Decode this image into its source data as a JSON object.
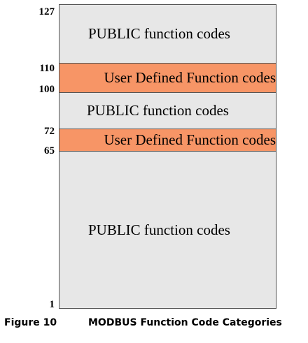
{
  "axis_ticks": {
    "t127": "127",
    "t110": "110",
    "t100": "100",
    "t72": "72",
    "t65": "65",
    "t1": "1"
  },
  "bands": {
    "public_top": "PUBLIC function codes",
    "user_upper": "User Defined Function codes",
    "public_middle": "PUBLIC function codes",
    "user_lower": "User Defined Function codes",
    "public_bottom": "PUBLIC function codes"
  },
  "colors": {
    "public_fill": "#e7e7e7",
    "user_defined_fill": "#f79566",
    "border": "#555555"
  },
  "caption": {
    "figure_number": "Figure 10",
    "title": "MODBUS Function Code Categories"
  }
}
